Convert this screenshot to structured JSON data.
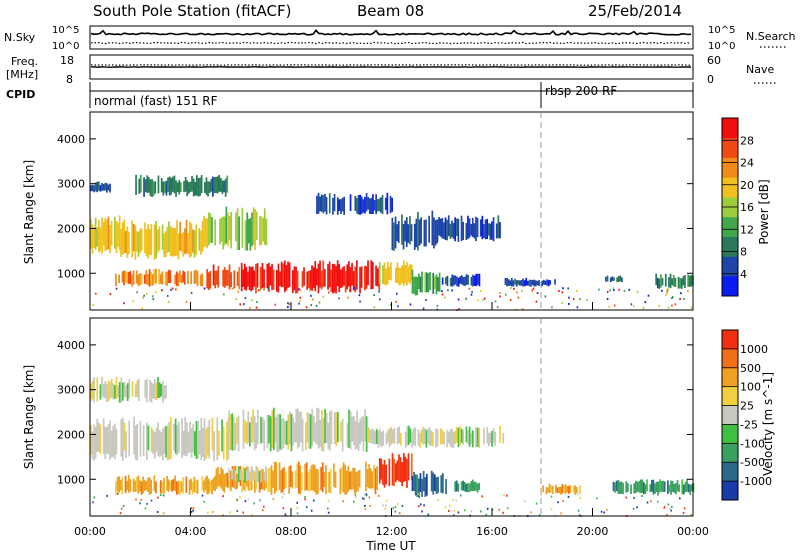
{
  "header": {
    "title": "South Pole Station (fitACF)",
    "beam": "Beam 08",
    "date": "25/Feb/2014"
  },
  "panels": {
    "nsky": {
      "label": "N.Sky",
      "right_label": "N.Search",
      "ticks_left": [
        "10^5",
        "10^0"
      ],
      "ticks_right": [
        "10^5",
        "10^0"
      ]
    },
    "freq": {
      "label_line1": "Freq.",
      "label_line2": "[MHz]",
      "right_label": "Nave",
      "ticks_left": [
        "18",
        "8"
      ],
      "ticks_right": [
        "60",
        "0"
      ]
    },
    "cpid": {
      "label": "CPID",
      "segments": [
        {
          "label": "normal (fast) 151 RF",
          "start_hour": 0
        },
        {
          "label": "rbsp 200 RF",
          "start_hour": 18
        }
      ]
    }
  },
  "chart_data": [
    {
      "type": "heatmap",
      "title": "",
      "xlabel": "",
      "ylabel": "Slant Range [km]",
      "xlim": [
        0,
        24
      ],
      "ylim": [
        180,
        4600
      ],
      "y_ticks": [
        1000,
        2000,
        3000,
        4000
      ],
      "colorbar": {
        "label": "Power [dB]",
        "tick_labels": [
          "4",
          "8",
          "12",
          "16",
          "20",
          "24",
          "28"
        ],
        "colors": [
          "#0a1cf0",
          "#1f45a8",
          "#2a7a5a",
          "#3fa84a",
          "#9ccd3c",
          "#f0c020",
          "#f08a18",
          "#f04a14",
          "#f01010"
        ],
        "range": [
          0,
          32
        ]
      },
      "regions": [
        {
          "x0": 0.0,
          "x1": 1.2,
          "y0": 1400,
          "y1": 2300,
          "level": 5
        },
        {
          "x0": 1.2,
          "x1": 4.5,
          "y0": 1300,
          "y1": 2200,
          "level": 5
        },
        {
          "x0": 4.5,
          "x1": 7.0,
          "y0": 1500,
          "y1": 2500,
          "level": 4
        },
        {
          "x0": 0.0,
          "x1": 0.8,
          "y0": 2800,
          "y1": 3050,
          "level": 1
        },
        {
          "x0": 1.8,
          "x1": 5.5,
          "y0": 2700,
          "y1": 3200,
          "level": 2
        },
        {
          "x0": 9.0,
          "x1": 12.0,
          "y0": 2300,
          "y1": 2800,
          "level": 1
        },
        {
          "x0": 12.0,
          "x1": 13.8,
          "y0": 1500,
          "y1": 2400,
          "level": 1
        },
        {
          "x0": 13.8,
          "x1": 16.5,
          "y0": 1700,
          "y1": 2300,
          "level": 1
        },
        {
          "x0": 1.0,
          "x1": 4.5,
          "y0": 700,
          "y1": 1100,
          "level": 6
        },
        {
          "x0": 4.5,
          "x1": 6.0,
          "y0": 600,
          "y1": 1250,
          "level": 7
        },
        {
          "x0": 6.0,
          "x1": 11.5,
          "y0": 550,
          "y1": 1300,
          "level": 8
        },
        {
          "x0": 11.5,
          "x1": 12.8,
          "y0": 700,
          "y1": 1300,
          "level": 5
        },
        {
          "x0": 12.8,
          "x1": 14.0,
          "y0": 500,
          "y1": 1100,
          "level": 3
        },
        {
          "x0": 14.0,
          "x1": 15.5,
          "y0": 700,
          "y1": 1000,
          "level": 1
        },
        {
          "x0": 16.5,
          "x1": 18.5,
          "y0": 700,
          "y1": 900,
          "level": 1
        },
        {
          "x0": 22.5,
          "x1": 24.0,
          "y0": 650,
          "y1": 1000,
          "level": 2
        },
        {
          "x0": 20.5,
          "x1": 21.2,
          "y0": 800,
          "y1": 950,
          "level": 1
        }
      ]
    },
    {
      "type": "heatmap",
      "title": "",
      "xlabel": "Time UT",
      "ylabel": "Slant Range [km]",
      "xlim": [
        0,
        24
      ],
      "ylim": [
        180,
        4600
      ],
      "y_ticks": [
        1000,
        2000,
        3000,
        4000
      ],
      "x_tick_labels": [
        "00:00",
        "04:00",
        "08:00",
        "12:00",
        "16:00",
        "20:00",
        "00:00"
      ],
      "colorbar": {
        "label": "Velocity [m s^-1]",
        "tick_labels": [
          "1000",
          "500",
          "100",
          "25",
          "-25",
          "-100",
          "-500",
          "-1000"
        ],
        "colors": [
          "#1a3aa8",
          "#2a6a8a",
          "#3aa060",
          "#40c040",
          "#c8c8c0",
          "#f0d040",
          "#f0a020",
          "#f07018",
          "#f03010"
        ],
        "range": [
          -1200,
          1200
        ]
      },
      "regions": [
        {
          "x0": 0.0,
          "x1": 5.5,
          "y0": 1400,
          "y1": 2400,
          "level": 4
        },
        {
          "x0": 5.5,
          "x1": 11.0,
          "y0": 1600,
          "y1": 2600,
          "level": 4
        },
        {
          "x0": 0.0,
          "x1": 3.0,
          "y0": 2700,
          "y1": 3300,
          "level": 4
        },
        {
          "x0": 11.0,
          "x1": 16.5,
          "y0": 1700,
          "y1": 2200,
          "level": 4
        },
        {
          "x0": 1.0,
          "x1": 5.0,
          "y0": 650,
          "y1": 1100,
          "level": 6
        },
        {
          "x0": 5.0,
          "x1": 7.0,
          "y0": 700,
          "y1": 1300,
          "level": 6
        },
        {
          "x0": 7.0,
          "x1": 11.5,
          "y0": 650,
          "y1": 1400,
          "level": 6
        },
        {
          "x0": 11.5,
          "x1": 12.8,
          "y0": 800,
          "y1": 1600,
          "level": 8
        },
        {
          "x0": 12.8,
          "x1": 14.2,
          "y0": 600,
          "y1": 1200,
          "level": 1
        },
        {
          "x0": 5.5,
          "x1": 7.0,
          "y0": 900,
          "y1": 1300,
          "level": 4
        },
        {
          "x0": 14.5,
          "x1": 15.5,
          "y0": 700,
          "y1": 1000,
          "level": 2
        },
        {
          "x0": 18.0,
          "x1": 19.5,
          "y0": 650,
          "y1": 900,
          "level": 6
        },
        {
          "x0": 20.8,
          "x1": 24.0,
          "y0": 650,
          "y1": 1000,
          "level": 2
        }
      ]
    }
  ]
}
